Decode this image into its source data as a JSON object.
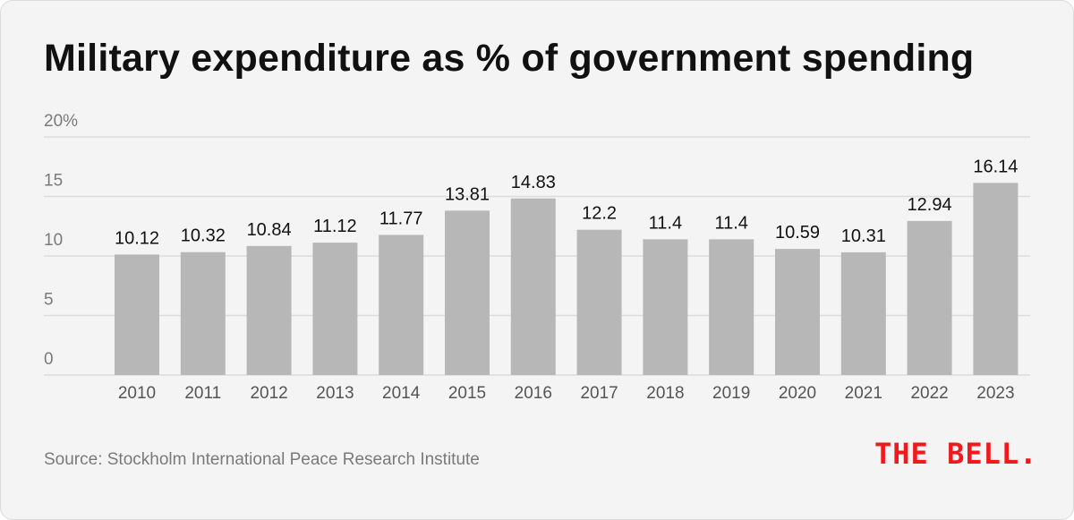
{
  "title": "Military expenditure as % of government spending",
  "source": "Source: Stockholm International Peace Research Institute",
  "logo": "THE BELL.",
  "colors": {
    "bar": "#b7b7b7",
    "logo": "#f0191e",
    "background": "#f4f4f4"
  },
  "chart_data": {
    "type": "bar",
    "title": "Military expenditure as % of government spending",
    "xlabel": "",
    "ylabel": "",
    "categories": [
      "2010",
      "2011",
      "2012",
      "2013",
      "2014",
      "2015",
      "2016",
      "2017",
      "2018",
      "2019",
      "2020",
      "2021",
      "2022",
      "2023"
    ],
    "values": [
      10.12,
      10.32,
      10.84,
      11.12,
      11.77,
      13.81,
      14.83,
      12.2,
      11.4,
      11.4,
      10.59,
      10.31,
      12.94,
      16.14
    ],
    "value_labels": [
      "10.12",
      "10.32",
      "10.84",
      "11.12",
      "11.77",
      "13.81",
      "14.83",
      "12.2",
      "11.4",
      "11.4",
      "10.59",
      "10.31",
      "12.94",
      "16.14"
    ],
    "ylim": [
      0,
      20
    ],
    "yticks": [
      0,
      5,
      10,
      15,
      20
    ],
    "ytick_labels": [
      "0",
      "5",
      "10",
      "15",
      "20%"
    ],
    "grid": true,
    "legend": "none"
  }
}
